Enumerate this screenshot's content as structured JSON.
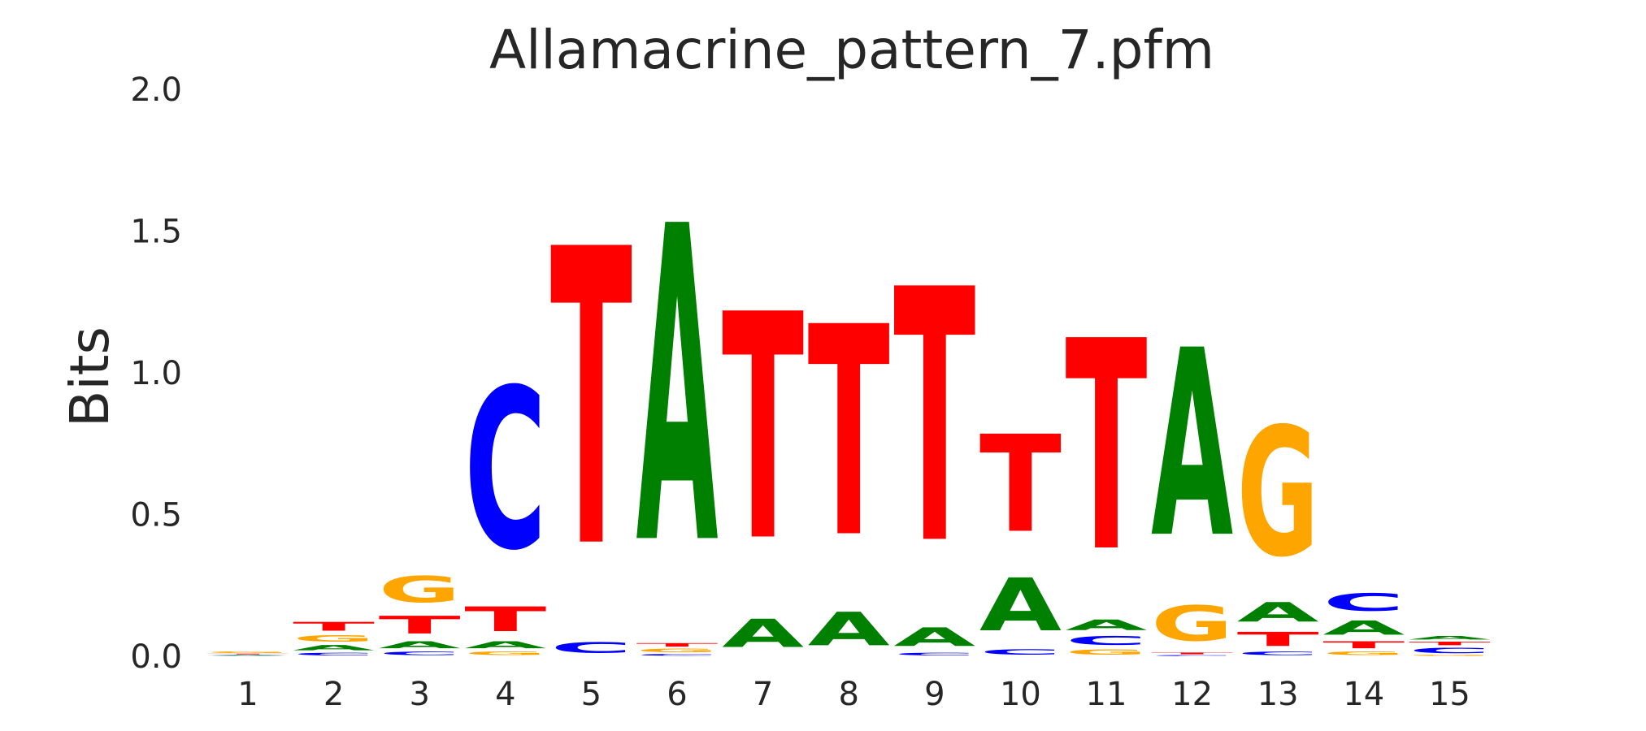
{
  "chart_data": {
    "type": "sequence-logo",
    "title": "Allamacrine_pattern_7.pfm",
    "ylabel": "Bits",
    "xlabel": "",
    "ylim": [
      0,
      2.0
    ],
    "yticks": [
      "0.0",
      "0.5",
      "1.0",
      "1.5",
      "2.0"
    ],
    "positions": [
      "1",
      "2",
      "3",
      "4",
      "5",
      "6",
      "7",
      "8",
      "9",
      "10",
      "11",
      "12",
      "13",
      "14",
      "15"
    ],
    "letter_colors": {
      "A": "#008000",
      "C": "#0000ff",
      "G": "#ffa500",
      "T": "#ff0000"
    },
    "stacks": [
      [
        {
          "letter": "C",
          "bits": 0.002
        },
        {
          "letter": "A",
          "bits": 0.004
        },
        {
          "letter": "T",
          "bits": 0.004
        },
        {
          "letter": "G",
          "bits": 0.008
        }
      ],
      [
        {
          "letter": "C",
          "bits": 0.015
        },
        {
          "letter": "A",
          "bits": 0.03
        },
        {
          "letter": "G",
          "bits": 0.035
        },
        {
          "letter": "T",
          "bits": 0.05
        }
      ],
      [
        {
          "letter": "C",
          "bits": 0.02
        },
        {
          "letter": "A",
          "bits": 0.04
        },
        {
          "letter": "T",
          "bits": 0.1
        },
        {
          "letter": "G",
          "bits": 0.15
        }
      ],
      [
        {
          "letter": "G",
          "bits": 0.02
        },
        {
          "letter": "A",
          "bits": 0.04
        },
        {
          "letter": "T",
          "bits": 0.14
        },
        {
          "letter": "C",
          "bits": 0.91
        }
      ],
      [
        {
          "letter": "C",
          "bits": 0.06
        },
        {
          "letter": "T",
          "bits": 1.68
        }
      ],
      [
        {
          "letter": "C",
          "bits": 0.01
        },
        {
          "letter": "G",
          "bits": 0.02
        },
        {
          "letter": "T",
          "bits": 0.02
        },
        {
          "letter": "A",
          "bits": 1.79
        }
      ],
      [
        {
          "letter": "A",
          "bits": 0.16
        },
        {
          "letter": "T",
          "bits": 1.28
        }
      ],
      [
        {
          "letter": "A",
          "bits": 0.19
        },
        {
          "letter": "T",
          "bits": 1.19
        }
      ],
      [
        {
          "letter": "C",
          "bits": 0.015
        },
        {
          "letter": "A",
          "bits": 0.105
        },
        {
          "letter": "T",
          "bits": 1.435
        }
      ],
      [
        {
          "letter": "C",
          "bits": 0.03
        },
        {
          "letter": "A",
          "bits": 0.3
        },
        {
          "letter": "T",
          "bits": 0.55
        }
      ],
      [
        {
          "letter": "G",
          "bits": 0.03
        },
        {
          "letter": "C",
          "bits": 0.05
        },
        {
          "letter": "A",
          "bits": 0.06
        },
        {
          "letter": "T",
          "bits": 1.19
        }
      ],
      [
        {
          "letter": "C",
          "bits": 0.005
        },
        {
          "letter": "T",
          "bits": 0.01
        },
        {
          "letter": "G",
          "bits": 0.2
        },
        {
          "letter": "A",
          "bits": 1.06
        }
      ],
      [
        {
          "letter": "C",
          "bits": 0.02
        },
        {
          "letter": "T",
          "bits": 0.08
        },
        {
          "letter": "A",
          "bits": 0.11
        },
        {
          "letter": "G",
          "bits": 0.73
        }
      ],
      [
        {
          "letter": "G",
          "bits": 0.02
        },
        {
          "letter": "T",
          "bits": 0.04
        },
        {
          "letter": "A",
          "bits": 0.08
        },
        {
          "letter": "C",
          "bits": 0.1
        }
      ],
      [
        {
          "letter": "G",
          "bits": 0.005
        },
        {
          "letter": "C",
          "bits": 0.03
        },
        {
          "letter": "T",
          "bits": 0.02
        },
        {
          "letter": "A",
          "bits": 0.02
        }
      ]
    ]
  }
}
